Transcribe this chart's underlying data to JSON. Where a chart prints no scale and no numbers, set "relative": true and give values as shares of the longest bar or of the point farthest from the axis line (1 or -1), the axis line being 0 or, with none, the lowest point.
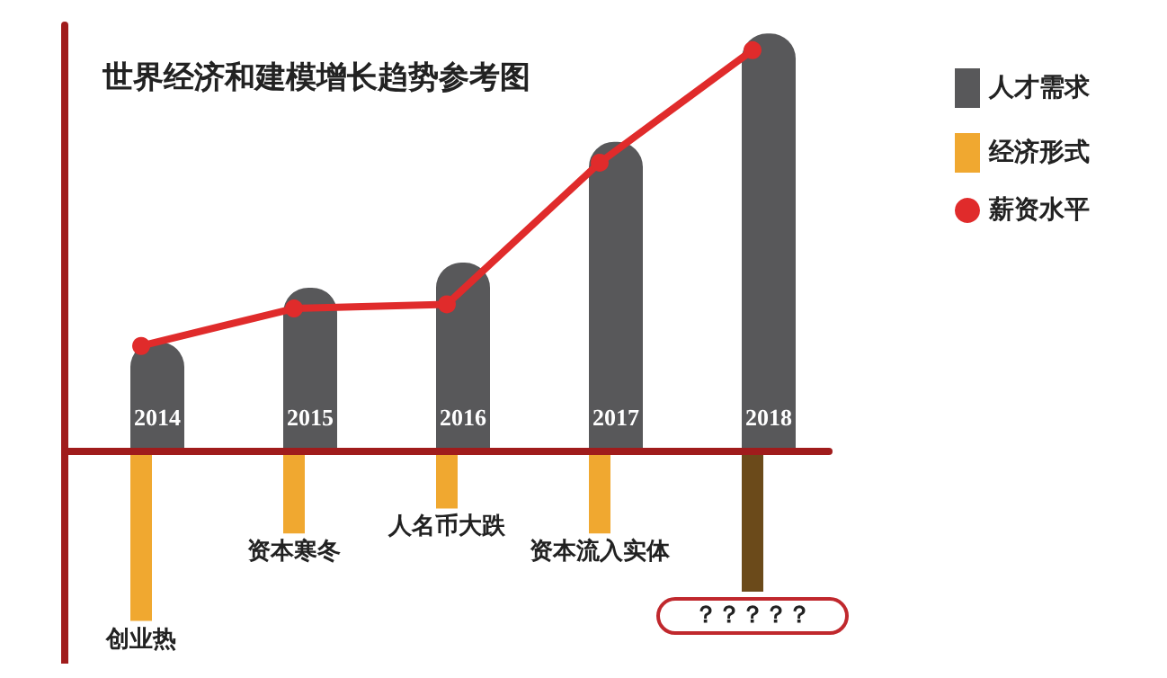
{
  "chart_data": {
    "type": "bar",
    "title": "世界经济和建模增长趋势参考图",
    "categories": [
      "2014",
      "2015",
      "2016",
      "2017",
      "2018"
    ],
    "relative": true,
    "legend": "top right",
    "marker": "circle",
    "series": [
      {
        "name": "人才需求",
        "color": "#58585a",
        "values": [
          0.26,
          0.39,
          0.45,
          0.74,
          1
        ]
      },
      {
        "name": "经济形式",
        "color": "#f0a830",
        "colors": [
          "#f0a830",
          "#f0a830",
          "#f0a830",
          "#f0a830",
          "#6b4a1a"
        ],
        "values": [
          -0.41,
          -0.2,
          -0.14,
          -0.2,
          -0.34
        ]
      },
      {
        "name": "薪资水平",
        "type": "line",
        "color": "#e02b2b",
        "values": [
          0.25,
          0.34,
          0.35,
          0.69,
          0.96
        ]
      }
    ],
    "annotations": [
      {
        "text": "创业热",
        "x": "2014",
        "y": -0.41
      },
      {
        "text": "资本寒冬",
        "x": "2015",
        "y": -0.2
      },
      {
        "text": "人名币大跌",
        "x": "2016",
        "y": -0.14
      },
      {
        "text": "资本流入实体",
        "x": "2017",
        "y": -0.2
      },
      {
        "text": "？？？？？",
        "x": "2018",
        "y": -0.34
      }
    ]
  }
}
